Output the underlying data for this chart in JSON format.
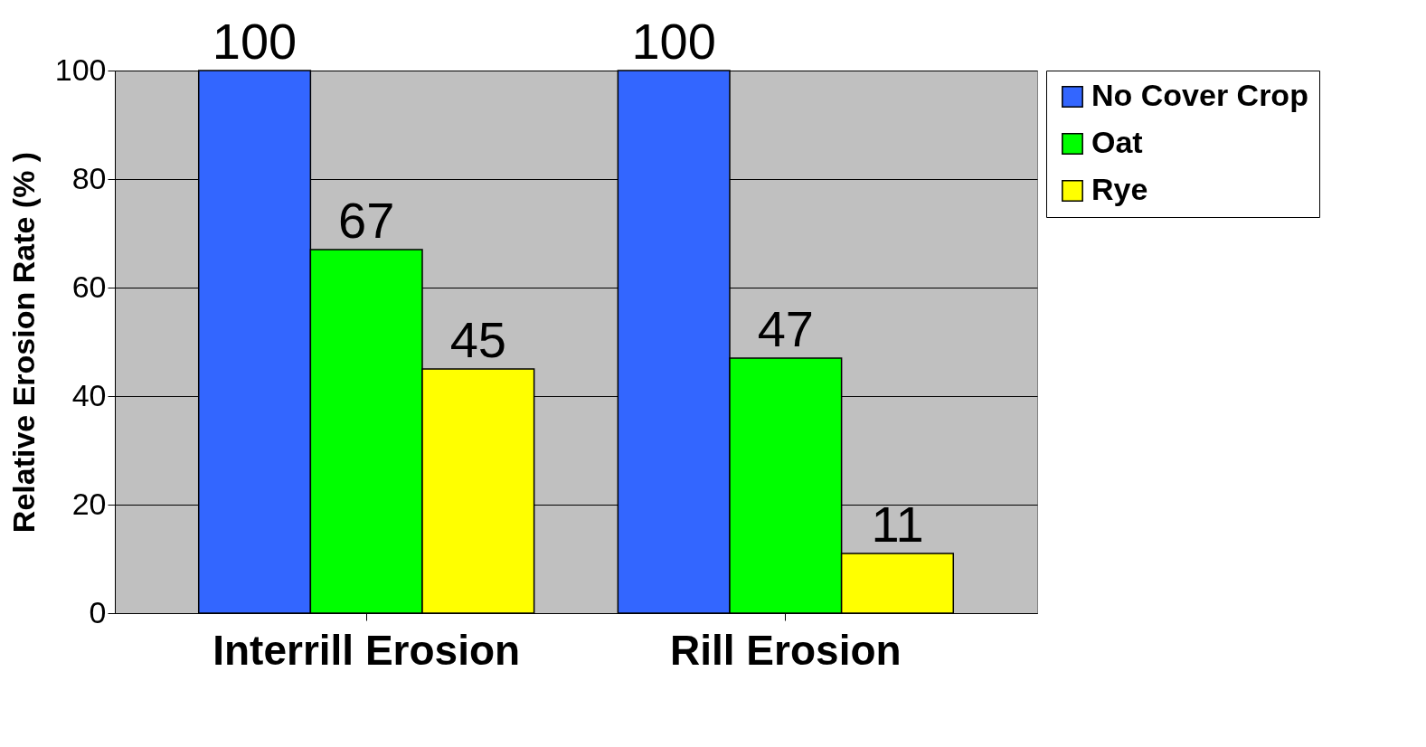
{
  "chart_data": {
    "type": "bar",
    "ylabel": "Relative Erosion Rate (% )",
    "categories": [
      "Interrill Erosion",
      "Rill Erosion"
    ],
    "series": [
      {
        "name": "No Cover Crop",
        "color": "#3366ff",
        "values": [
          100,
          100
        ]
      },
      {
        "name": "Oat",
        "color": "#00ff00",
        "values": [
          67,
          47
        ]
      },
      {
        "name": "Rye",
        "color": "#ffff00",
        "values": [
          45,
          11
        ]
      }
    ],
    "ylim": [
      0,
      100
    ],
    "yticks": [
      0,
      20,
      40,
      60,
      80,
      100
    ],
    "grid": "y",
    "legend": "right",
    "data_labels": true
  }
}
